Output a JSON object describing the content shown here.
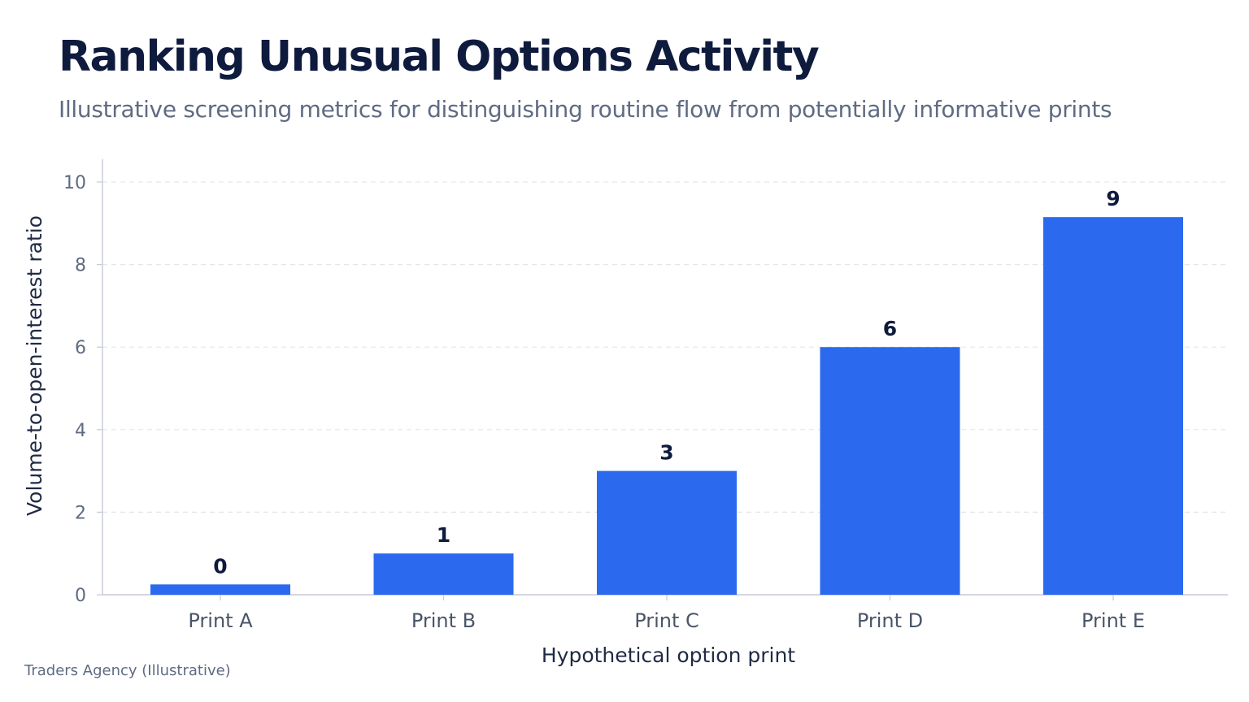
{
  "header": {
    "title": "Ranking Unusual Options Activity",
    "subtitle": "Illustrative screening metrics for distinguishing routine flow from potentially informative prints"
  },
  "footer": {
    "source": "Traders Agency (Illustrative)"
  },
  "colors": {
    "bar": "#2b6aef",
    "grid": "#e3e6ec",
    "axis": "#c5cad6"
  },
  "chart_data": {
    "type": "bar",
    "title": "Ranking Unusual Options Activity",
    "subtitle": "Illustrative screening metrics for distinguishing routine flow from potentially informative prints",
    "xlabel": "Hypothetical option print",
    "ylabel": "Volume-to-open-interest ratio",
    "categories": [
      "Print A",
      "Print B",
      "Print C",
      "Print D",
      "Print E"
    ],
    "values": [
      0.25,
      1.0,
      3.0,
      6.0,
      9.15
    ],
    "data_labels": [
      "0",
      "1",
      "3",
      "6",
      "9"
    ],
    "ylim": [
      0,
      10
    ],
    "yticks": [
      0,
      2,
      4,
      6,
      8,
      10
    ],
    "grid": true,
    "legend": "none"
  }
}
